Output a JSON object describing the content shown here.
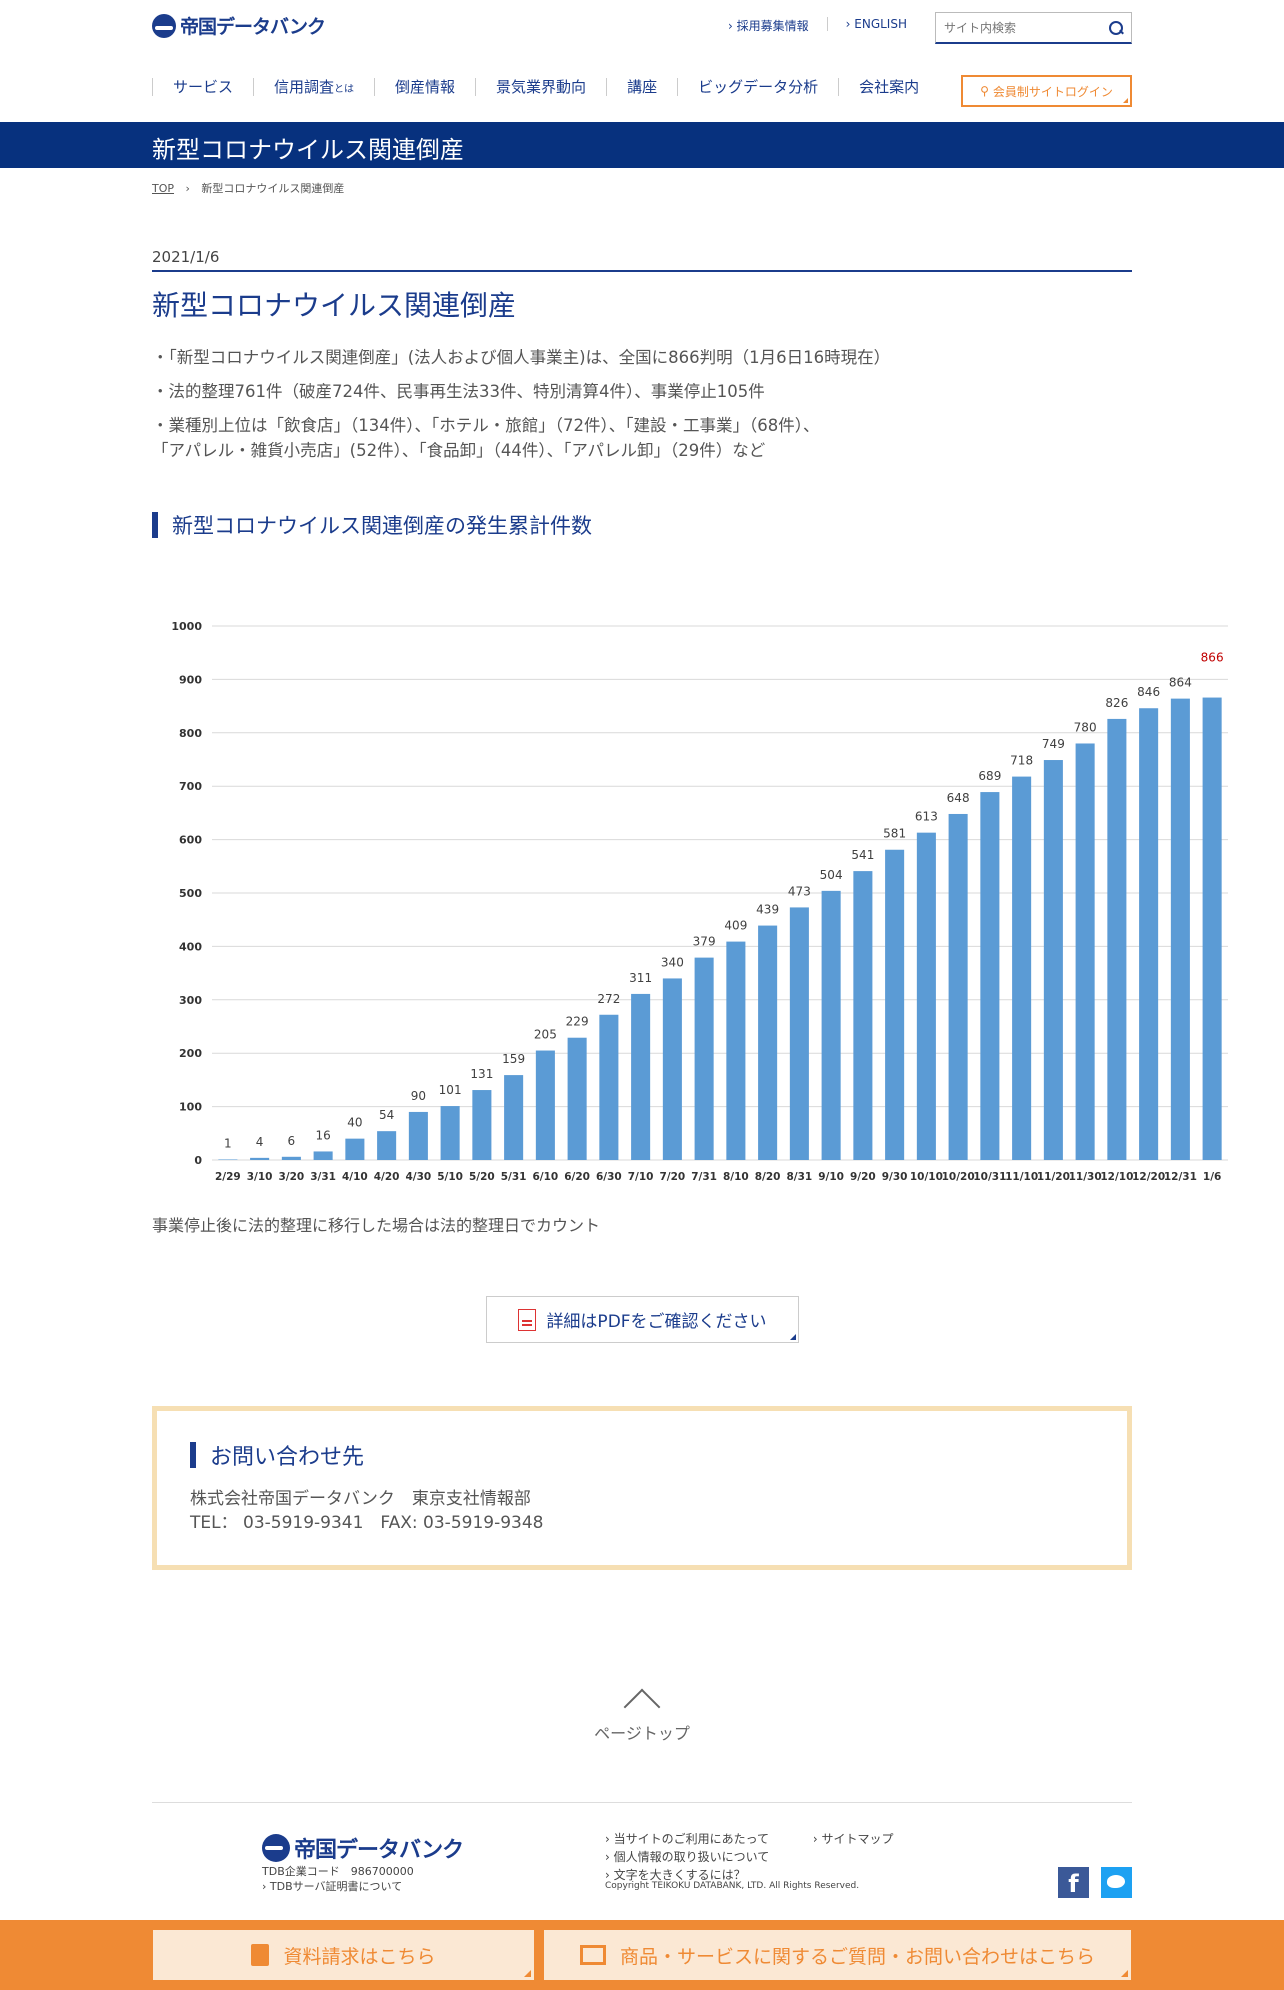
{
  "header": {
    "logo_text": "帝国データバンク",
    "top_links": [
      "採用募集情報",
      "ENGLISH"
    ],
    "search_placeholder": "サイト内検索",
    "nav": [
      "サービス",
      "信用調査",
      "倒産情報",
      "景気業界動向",
      "講座",
      "ビッグデータ分析",
      "会社案内"
    ],
    "nav_suffix": "とは",
    "login": "会員制サイトログイン"
  },
  "banner": {
    "title": "新型コロナウイルス関連倒産"
  },
  "breadcrumb": {
    "top": "TOP",
    "current": "新型コロナウイルス関連倒産"
  },
  "article": {
    "date": "2021/1/6",
    "title": "新型コロナウイルス関連倒産",
    "bullets": [
      "・「新型コロナウイルス関連倒産」(法人および個人事業主)は、全国に866判明（1月6日16時現在）",
      "・法的整理761件（破産724件、民事再生法33件、特別清算4件）、事業停止105件",
      "・業種別上位は「飲食店」（134件）、「ホテル・旅館」（72件）、「建設・工事業」（68件）、",
      "「アパレル・雑貨小売店」(52件）、「食品卸」（44件）、「アパレル卸」（29件）など"
    ],
    "section_title": "新型コロナウイルス関連倒産の発生累計件数",
    "note": "事業停止後に法的整理に移行した場合は法的整理日でカウント",
    "pdf_button": "詳細はPDFをご確認ください"
  },
  "chart_data": {
    "type": "bar",
    "categories": [
      "2/29",
      "3/10",
      "3/20",
      "3/31",
      "4/10",
      "4/20",
      "4/30",
      "5/10",
      "5/20",
      "5/31",
      "6/10",
      "6/20",
      "6/30",
      "7/10",
      "7/20",
      "7/31",
      "8/10",
      "8/20",
      "8/31",
      "9/10",
      "9/20",
      "9/30",
      "10/10",
      "10/20",
      "10/31",
      "11/10",
      "11/20",
      "11/30",
      "12/10",
      "12/20",
      "12/31",
      "1/6"
    ],
    "values": [
      1,
      4,
      6,
      16,
      40,
      54,
      90,
      101,
      131,
      159,
      205,
      229,
      272,
      311,
      340,
      379,
      409,
      439,
      473,
      504,
      541,
      581,
      613,
      648,
      689,
      718,
      749,
      780,
      826,
      846,
      864,
      866
    ],
    "yticks": [
      "0",
      "100",
      "200",
      "300",
      "400",
      "500",
      "600",
      "700",
      "800",
      "900",
      "1000"
    ],
    "ylim": [
      0,
      1000
    ],
    "bar_color": "#5b9bd5",
    "highlight_label_color": "#c00000",
    "grid": true
  },
  "contact": {
    "title": "お問い合わせ先",
    "company": "株式会社帝国データバンク　東京支社情報部",
    "tel": "TEL： 03-5919-9341　FAX: 03-5919-9348"
  },
  "pagetop": "ページトップ",
  "footer": {
    "logo_text": "帝国データバンク",
    "code": "TDB企業コード　986700000",
    "cert": "TDBサーバ証明書について",
    "links": [
      "当サイトのご利用にあたって",
      "サイトマップ",
      "個人情報の取り扱いについて",
      "文字を大きくするには？"
    ],
    "copyright": "Copyright TEIKOKU DATABANK, LTD. All Rights Reserved."
  },
  "bottom_bar": {
    "request": "資料請求はこちら",
    "inquiry": "商品・サービスに関するご質問・お問い合わせはこちら"
  }
}
